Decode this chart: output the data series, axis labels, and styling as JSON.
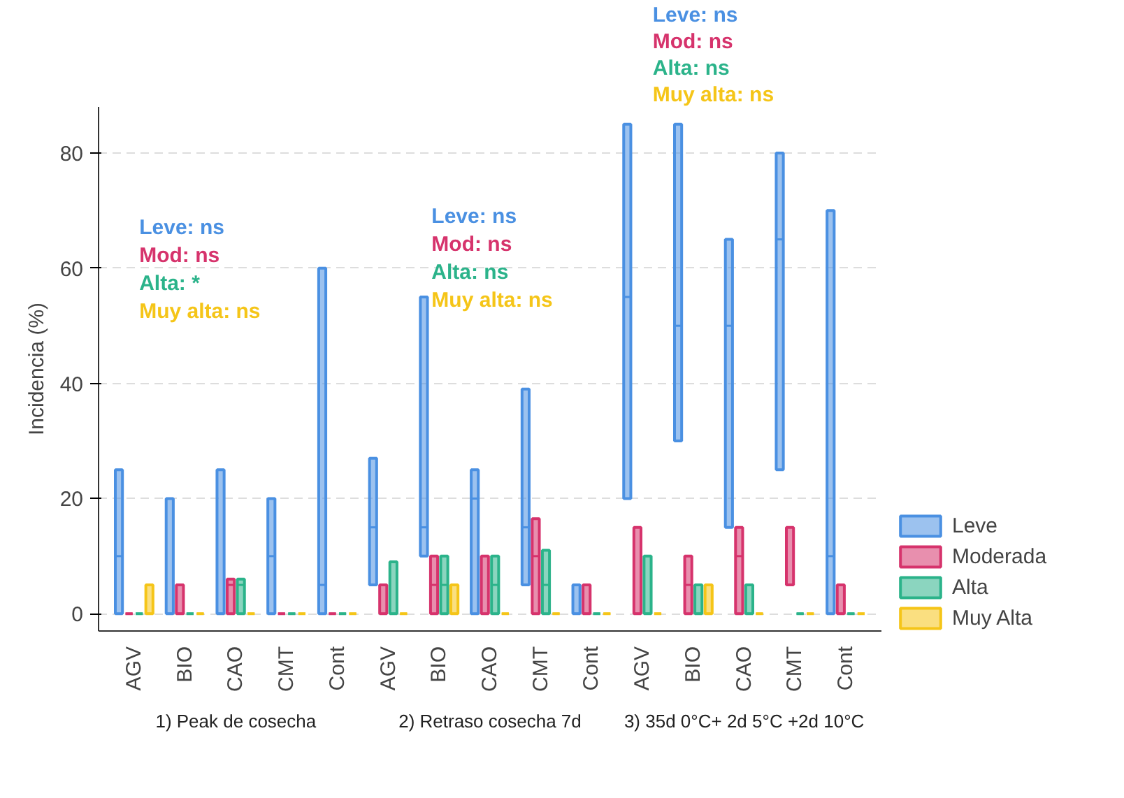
{
  "chart_data": {
    "type": "box",
    "ylabel": "Incidencia (%)",
    "categories": [
      "AGV",
      "BIO",
      "CAO",
      "CMT",
      "Cont",
      "AGV",
      "BIO",
      "CAO",
      "CMT",
      "Cont",
      "AGV",
      "BIO",
      "CAO",
      "CMT",
      "Cont"
    ],
    "ylim": [
      -3,
      88
    ],
    "yticks": [
      0,
      20,
      40,
      60,
      80
    ],
    "grid": "y",
    "legend": "right",
    "annotations": [
      "1) Peak de cosecha",
      "2) Retraso cosecha 7d",
      "3) 35d 0°C+ 2d 5°C +2d 10°C",
      "Leve: ns",
      "Mod: ns",
      "Alta: *",
      "Muy alta: ns",
      "Leve: ns",
      "Mod: ns",
      "Alta: ns",
      "Muy alta: ns",
      "Leve: ns",
      "Mod: ns",
      "Alta: ns",
      "Muy alta: ns"
    ],
    "series": [
      {
        "name": "Leve",
        "color": "#4a90e2",
        "boxes": [
          {
            "low": 0,
            "q1": 0,
            "median": 10,
            "q3": 25,
            "high": 25
          },
          {
            "low": 0,
            "q1": 0,
            "median": 0,
            "q3": 20,
            "high": 20
          },
          {
            "low": 0,
            "q1": 0,
            "median": 0,
            "q3": 25,
            "high": 25
          },
          {
            "low": 0,
            "q1": 0,
            "median": 10,
            "q3": 20,
            "high": 20
          },
          {
            "low": 0,
            "q1": 0,
            "median": 5,
            "q3": 60,
            "high": 60
          },
          {
            "low": 5,
            "q1": 5,
            "median": 15,
            "q3": 27,
            "high": 27
          },
          {
            "low": 10,
            "q1": 10,
            "median": 15,
            "q3": 55,
            "high": 55
          },
          {
            "low": 0,
            "q1": 0,
            "median": 20,
            "q3": 25,
            "high": 25
          },
          {
            "low": 5,
            "q1": 5,
            "median": 15,
            "q3": 39,
            "high": 39
          },
          {
            "low": 0,
            "q1": 0,
            "median": 0,
            "q3": 5,
            "high": 5
          },
          {
            "low": 20,
            "q1": 20,
            "median": 55,
            "q3": 85,
            "high": 85
          },
          {
            "low": 30,
            "q1": 30,
            "median": 50,
            "q3": 85,
            "high": 85
          },
          {
            "low": 15,
            "q1": 15,
            "median": 50,
            "q3": 65,
            "high": 65
          },
          {
            "low": 25,
            "q1": 25,
            "median": 65,
            "q3": 80,
            "high": 80
          },
          {
            "low": 0,
            "q1": 0,
            "median": 10,
            "q3": 70,
            "high": 70
          }
        ]
      },
      {
        "name": "Moderada",
        "color": "#d6336c",
        "boxes": [
          {
            "low": 0,
            "q1": 0,
            "median": 0,
            "q3": 0,
            "high": 0
          },
          {
            "low": 0,
            "q1": 0,
            "median": 0,
            "q3": 5,
            "high": 5
          },
          {
            "low": 0,
            "q1": 0,
            "median": 5,
            "q3": 6,
            "high": 6
          },
          {
            "low": 0,
            "q1": 0,
            "median": 0,
            "q3": 0,
            "high": 0
          },
          {
            "low": 0,
            "q1": 0,
            "median": 0,
            "q3": 0,
            "high": 0
          },
          {
            "low": 0,
            "q1": 0,
            "median": 0,
            "q3": 5,
            "high": 5
          },
          {
            "low": 0,
            "q1": 0,
            "median": 5,
            "q3": 10,
            "high": 10
          },
          {
            "low": 0,
            "q1": 0,
            "median": 0,
            "q3": 10,
            "high": 10
          },
          {
            "low": 0,
            "q1": 0,
            "median": 10,
            "q3": 16.5,
            "high": 16.5
          },
          {
            "low": 0,
            "q1": 0,
            "median": 0,
            "q3": 5,
            "high": 5
          },
          {
            "low": 0,
            "q1": 0,
            "median": 0,
            "q3": 15,
            "high": 15
          },
          {
            "low": 0,
            "q1": 0,
            "median": 5,
            "q3": 10,
            "high": 10
          },
          {
            "low": 0,
            "q1": 0,
            "median": 10,
            "q3": 15,
            "high": 15
          },
          {
            "low": 5,
            "q1": 5,
            "median": 5,
            "q3": 15,
            "high": 15
          },
          {
            "low": 0,
            "q1": 0,
            "median": 0,
            "q3": 5,
            "high": 5
          }
        ]
      },
      {
        "name": "Alta",
        "color": "#2bb38a",
        "boxes": [
          {
            "low": 0,
            "q1": 0,
            "median": 0,
            "q3": 0,
            "high": 0
          },
          {
            "low": 0,
            "q1": 0,
            "median": 0,
            "q3": 0,
            "high": 0
          },
          {
            "low": 0,
            "q1": 0,
            "median": 5,
            "q3": 6,
            "high": 6
          },
          {
            "low": 0,
            "q1": 0,
            "median": 0,
            "q3": 0,
            "high": 0
          },
          {
            "low": 0,
            "q1": 0,
            "median": 0,
            "q3": 0,
            "high": 0
          },
          {
            "low": 0,
            "q1": 0,
            "median": 0,
            "q3": 9,
            "high": 9
          },
          {
            "low": 0,
            "q1": 0,
            "median": 5,
            "q3": 10,
            "high": 10
          },
          {
            "low": 0,
            "q1": 0,
            "median": 5,
            "q3": 10,
            "high": 10
          },
          {
            "low": 0,
            "q1": 0,
            "median": 5,
            "q3": 11,
            "high": 11
          },
          {
            "low": 0,
            "q1": 0,
            "median": 0,
            "q3": 0,
            "high": 0
          },
          {
            "low": 0,
            "q1": 0,
            "median": 0,
            "q3": 10,
            "high": 10
          },
          {
            "low": 0,
            "q1": 0,
            "median": 0,
            "q3": 5,
            "high": 5
          },
          {
            "low": 0,
            "q1": 0,
            "median": 0,
            "q3": 5,
            "high": 5
          },
          {
            "low": 0,
            "q1": 0,
            "median": 0,
            "q3": 0,
            "high": 0
          },
          {
            "low": 0,
            "q1": 0,
            "median": 0,
            "q3": 0,
            "high": 0
          }
        ]
      },
      {
        "name": "Muy Alta",
        "color": "#f5c518",
        "boxes": [
          {
            "low": 0,
            "q1": 0,
            "median": 0,
            "q3": 5,
            "high": 5
          },
          {
            "low": 0,
            "q1": 0,
            "median": 0,
            "q3": 0,
            "high": 0
          },
          {
            "low": 0,
            "q1": 0,
            "median": 0,
            "q3": 0,
            "high": 0
          },
          {
            "low": 0,
            "q1": 0,
            "median": 0,
            "q3": 0,
            "high": 0
          },
          {
            "low": 0,
            "q1": 0,
            "median": 0,
            "q3": 0,
            "high": 0
          },
          {
            "low": 0,
            "q1": 0,
            "median": 0,
            "q3": 0,
            "high": 0
          },
          {
            "low": 0,
            "q1": 0,
            "median": 0,
            "q3": 5,
            "high": 5
          },
          {
            "low": 0,
            "q1": 0,
            "median": 0,
            "q3": 0,
            "high": 0
          },
          {
            "low": 0,
            "q1": 0,
            "median": 0,
            "q3": 0,
            "high": 0
          },
          {
            "low": 0,
            "q1": 0,
            "median": 0,
            "q3": 0,
            "high": 0
          },
          {
            "low": 0,
            "q1": 0,
            "median": 0,
            "q3": 0,
            "high": 0
          },
          {
            "low": 0,
            "q1": 0,
            "median": 0,
            "q3": 5,
            "high": 5
          },
          {
            "low": 0,
            "q1": 0,
            "median": 0,
            "q3": 0,
            "high": 0
          },
          {
            "low": 0,
            "q1": 0,
            "median": 0,
            "q3": 0,
            "high": 0
          },
          {
            "low": 0,
            "q1": 0,
            "median": 0,
            "q3": 0,
            "high": 0
          }
        ]
      }
    ]
  }
}
